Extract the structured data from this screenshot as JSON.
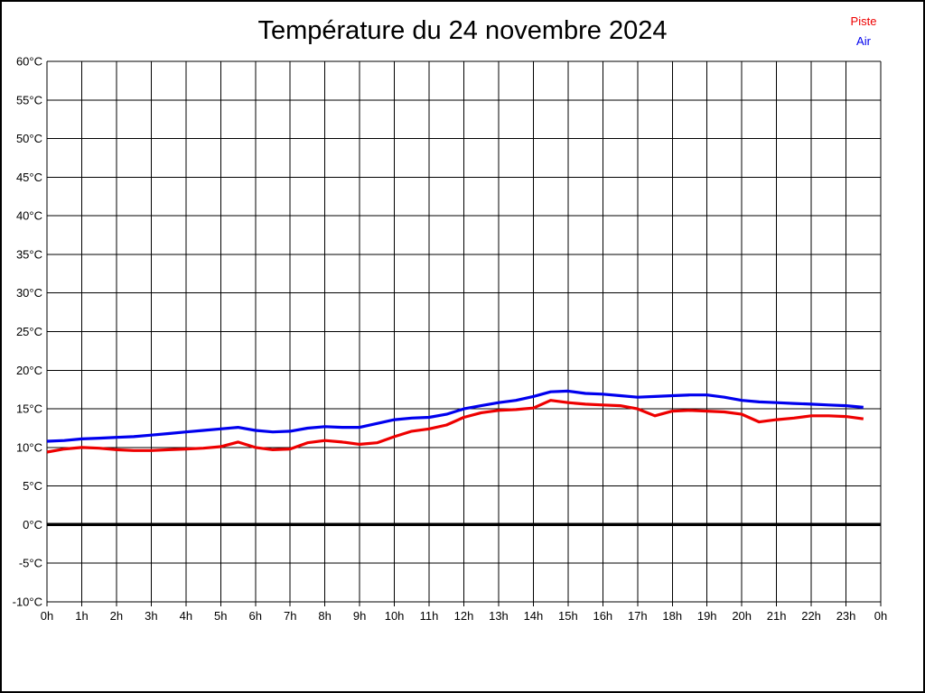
{
  "title": "Température du 24 novembre 2024",
  "legend": {
    "items": [
      {
        "label": "Piste",
        "color": "#ee0000"
      },
      {
        "label": "Air",
        "color": "#0000ee"
      }
    ]
  },
  "chart_data": {
    "type": "line",
    "title": "Température du 24 novembre 2024",
    "xlabel": "",
    "ylabel": "",
    "x_unit": "hours",
    "xlim": [
      0,
      24
    ],
    "ylim": [
      -10,
      60
    ],
    "grid": true,
    "grid_color": "#000000",
    "zero_line_bold": true,
    "legend_position": "top-right",
    "background": "#ffffff",
    "ytick_values": [
      60,
      55,
      50,
      45,
      40,
      35,
      30,
      25,
      20,
      15,
      10,
      5,
      0,
      -5,
      -10
    ],
    "ytick_labels": [
      "60°C",
      "55°C",
      "50°C",
      "45°C",
      "40°C",
      "35°C",
      "30°C",
      "25°C",
      "20°C",
      "15°C",
      "10°C",
      "5°C",
      "0°C",
      "-5°C",
      "-10°C"
    ],
    "xtick_values": [
      0,
      1,
      2,
      3,
      4,
      5,
      6,
      7,
      8,
      9,
      10,
      11,
      12,
      13,
      14,
      15,
      16,
      17,
      18,
      19,
      20,
      21,
      22,
      23,
      24
    ],
    "xtick_labels": [
      "0h",
      "1h",
      "2h",
      "3h",
      "4h",
      "5h",
      "6h",
      "7h",
      "8h",
      "9h",
      "10h",
      "11h",
      "12h",
      "13h",
      "14h",
      "15h",
      "16h",
      "17h",
      "18h",
      "19h",
      "20h",
      "21h",
      "22h",
      "23h",
      "0h"
    ],
    "x": [
      0,
      0.5,
      1,
      1.5,
      2,
      2.5,
      3,
      3.5,
      4,
      4.5,
      5,
      5.5,
      6,
      6.5,
      7,
      7.5,
      8,
      8.5,
      9,
      9.5,
      10,
      10.5,
      11,
      11.5,
      12,
      12.5,
      13,
      13.5,
      14,
      14.5,
      15,
      15.5,
      16,
      16.5,
      17,
      17.5,
      18,
      18.5,
      19,
      19.5,
      20,
      20.5,
      21,
      21.5,
      22,
      22.5,
      23,
      23.5
    ],
    "series": [
      {
        "name": "Piste",
        "color": "#ee0000",
        "values": [
          9.4,
          9.8,
          10.0,
          9.9,
          9.7,
          9.6,
          9.6,
          9.7,
          9.8,
          9.9,
          10.1,
          10.7,
          10.0,
          9.7,
          9.8,
          10.6,
          10.9,
          10.7,
          10.4,
          10.6,
          11.4,
          12.1,
          12.4,
          12.9,
          13.9,
          14.5,
          14.8,
          14.9,
          15.1,
          16.1,
          15.8,
          15.6,
          15.5,
          15.4,
          15.0,
          14.1,
          14.7,
          14.8,
          14.7,
          14.6,
          14.3,
          13.3,
          13.6,
          13.8,
          14.1,
          14.1,
          14.0,
          13.7
        ]
      },
      {
        "name": "Air",
        "color": "#0000ee",
        "values": [
          10.8,
          10.9,
          11.1,
          11.2,
          11.3,
          11.4,
          11.6,
          11.8,
          12.0,
          12.2,
          12.4,
          12.6,
          12.2,
          12.0,
          12.1,
          12.5,
          12.7,
          12.6,
          12.6,
          13.1,
          13.6,
          13.8,
          13.9,
          14.3,
          15.0,
          15.4,
          15.8,
          16.1,
          16.6,
          17.2,
          17.3,
          17.0,
          16.9,
          16.7,
          16.5,
          16.6,
          16.7,
          16.8,
          16.8,
          16.5,
          16.1,
          15.9,
          15.8,
          15.7,
          15.6,
          15.5,
          15.4,
          15.2
        ]
      }
    ]
  }
}
